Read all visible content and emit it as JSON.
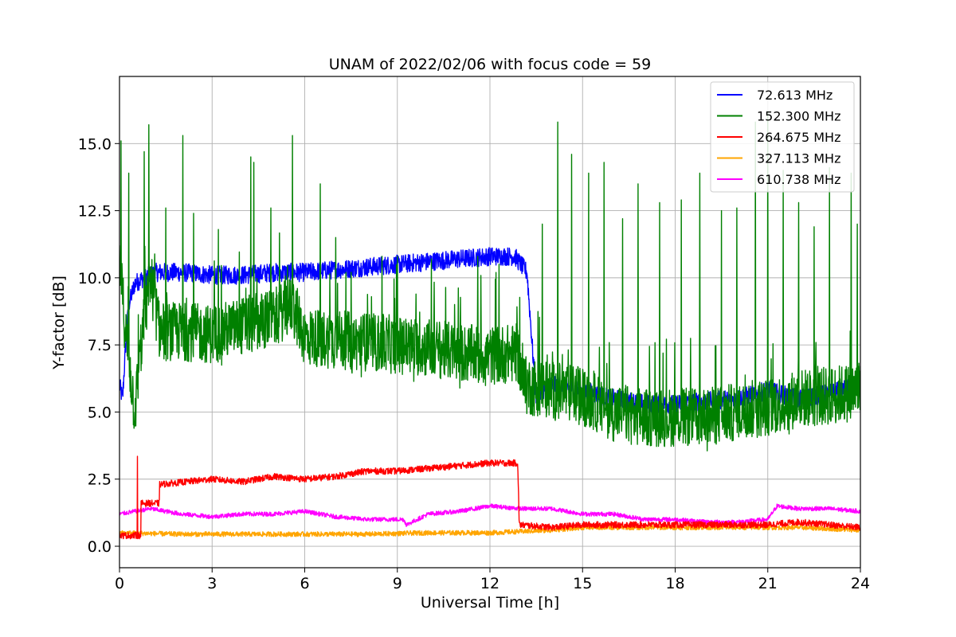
{
  "chart_data": {
    "type": "line",
    "title": "UNAM of 2022/02/06 with focus code = 59",
    "xlabel": "Universal Time [h]",
    "ylabel": "Y-factor [dB]",
    "xlim": [
      0,
      24
    ],
    "ylim": [
      -0.8,
      17.5
    ],
    "xticks": [
      0,
      3,
      6,
      9,
      12,
      15,
      18,
      21,
      24
    ],
    "xtick_labels": [
      "0",
      "3",
      "6",
      "9",
      "12",
      "15",
      "18",
      "21",
      "24"
    ],
    "yticks": [
      0.0,
      2.5,
      5.0,
      7.5,
      10.0,
      12.5,
      15.0
    ],
    "ytick_labels": [
      "0.0",
      "2.5",
      "5.0",
      "7.5",
      "10.0",
      "12.5",
      "15.0"
    ],
    "grid": true,
    "legend_position": "top-right",
    "series": [
      {
        "name": "72.613 MHz",
        "legend_label": " 72.613 MHz",
        "color": "#0000ff",
        "noise": 0.35,
        "x": [
          0,
          0.1,
          0.2,
          0.3,
          0.5,
          0.8,
          1.2,
          2,
          3,
          4,
          5,
          6,
          7,
          8,
          9,
          10,
          11,
          12,
          12.8,
          13.2,
          13.4,
          13.5,
          13.7,
          14,
          15,
          16,
          17,
          18,
          19,
          20,
          21,
          22,
          23,
          24
        ],
        "y": [
          6.0,
          5.5,
          7.5,
          9.0,
          9.8,
          10.0,
          10.2,
          10.2,
          10.1,
          10.1,
          10.2,
          10.2,
          10.3,
          10.4,
          10.5,
          10.6,
          10.7,
          10.8,
          10.8,
          10.2,
          7.0,
          5.5,
          5.8,
          6.0,
          5.8,
          5.5,
          5.3,
          5.3,
          5.4,
          5.5,
          5.8,
          5.5,
          5.7,
          6.0
        ]
      },
      {
        "name": "152.300 MHz",
        "legend_label": "152.300 MHz",
        "color": "#008000",
        "noise": 1.1,
        "x": [
          0,
          0.2,
          0.5,
          0.7,
          1.0,
          1.3,
          2,
          3,
          4,
          5,
          5.6,
          6,
          7,
          8,
          9,
          10,
          11,
          12,
          12.9,
          13.1,
          14,
          15,
          16,
          17,
          18,
          19,
          20,
          21,
          22,
          23,
          24
        ],
        "y": [
          10.5,
          8.0,
          5.0,
          7.5,
          10.0,
          8.0,
          8.0,
          7.9,
          8.2,
          8.5,
          9.0,
          7.8,
          7.7,
          7.6,
          7.5,
          7.4,
          7.2,
          7.1,
          7.2,
          6.0,
          5.8,
          5.6,
          5.0,
          4.8,
          4.8,
          4.8,
          5.0,
          5.2,
          5.5,
          5.6,
          5.8
        ],
        "spikes": [
          [
            0.05,
            15.1
          ],
          [
            0.3,
            13.9
          ],
          [
            0.8,
            14.7
          ],
          [
            0.95,
            15.7
          ],
          [
            1.5,
            12.6
          ],
          [
            2.05,
            15.3
          ],
          [
            2.4,
            12.4
          ],
          [
            3.2,
            11.8
          ],
          [
            4.25,
            14.5
          ],
          [
            4.35,
            14.3
          ],
          [
            4.9,
            12.6
          ],
          [
            5.6,
            15.3
          ],
          [
            6.5,
            13.5
          ],
          [
            7.0,
            11.5
          ],
          [
            7.5,
            10.2
          ],
          [
            8.5,
            10.8
          ],
          [
            9.0,
            10.8
          ],
          [
            10.1,
            10.7
          ],
          [
            11.6,
            10.8
          ],
          [
            12.3,
            10.5
          ],
          [
            13.7,
            12.0
          ],
          [
            14.2,
            15.8
          ],
          [
            14.65,
            14.6
          ],
          [
            15.2,
            13.9
          ],
          [
            15.7,
            14.3
          ],
          [
            16.3,
            12.2
          ],
          [
            16.8,
            13.5
          ],
          [
            17.5,
            12.8
          ],
          [
            18.2,
            12.9
          ],
          [
            18.8,
            13.9
          ],
          [
            19.5,
            12.5
          ],
          [
            20.0,
            12.6
          ],
          [
            20.6,
            15.8
          ],
          [
            21.0,
            16.2
          ],
          [
            21.5,
            14.0
          ],
          [
            22.0,
            12.8
          ],
          [
            22.5,
            11.9
          ],
          [
            23.0,
            14.1
          ],
          [
            23.7,
            13.9
          ],
          [
            23.9,
            12.0
          ]
        ]
      },
      {
        "name": "264.675 MHz",
        "legend_label": "264.675 MHz",
        "color": "#ff0000",
        "noise": 0.12,
        "x": [
          0,
          0.69,
          0.7,
          1.29,
          1.3,
          3,
          4,
          5,
          6,
          7,
          8,
          9,
          10,
          11,
          12,
          12.9,
          12.95,
          14,
          15,
          16,
          17,
          18,
          19,
          20,
          21,
          22,
          24
        ],
        "y": [
          0.4,
          0.4,
          1.6,
          1.6,
          2.3,
          2.5,
          2.4,
          2.6,
          2.5,
          2.6,
          2.8,
          2.8,
          2.9,
          3.0,
          3.1,
          3.1,
          0.8,
          0.7,
          0.8,
          0.8,
          0.8,
          0.8,
          0.8,
          0.8,
          0.8,
          0.9,
          0.7
        ],
        "spikes": [
          [
            0.58,
            3.35
          ]
        ]
      },
      {
        "name": "327.113 MHz",
        "legend_label": "327.113 MHz",
        "color": "#ffa500",
        "noise": 0.09,
        "x": [
          0,
          2,
          4,
          6,
          8,
          10,
          12,
          13,
          14,
          15,
          16,
          18,
          20,
          22,
          24
        ],
        "y": [
          0.5,
          0.45,
          0.45,
          0.45,
          0.45,
          0.5,
          0.5,
          0.55,
          0.6,
          0.7,
          0.7,
          0.7,
          0.7,
          0.7,
          0.6
        ]
      },
      {
        "name": "610.738 MHz",
        "legend_label": "610.738 MHz",
        "color": "#ff00ff",
        "noise": 0.08,
        "x": [
          0,
          1,
          2,
          3,
          4,
          5,
          6,
          7,
          8,
          9.2,
          9.3,
          10,
          11,
          12,
          13,
          14,
          15,
          16,
          17,
          18,
          19,
          20,
          21,
          21.3,
          22,
          23,
          24
        ],
        "y": [
          1.2,
          1.4,
          1.2,
          1.1,
          1.2,
          1.2,
          1.3,
          1.1,
          1.0,
          1.0,
          0.8,
          1.2,
          1.3,
          1.5,
          1.4,
          1.4,
          1.2,
          1.2,
          1.0,
          1.0,
          0.9,
          0.9,
          1.0,
          1.5,
          1.4,
          1.4,
          1.3
        ]
      }
    ]
  }
}
